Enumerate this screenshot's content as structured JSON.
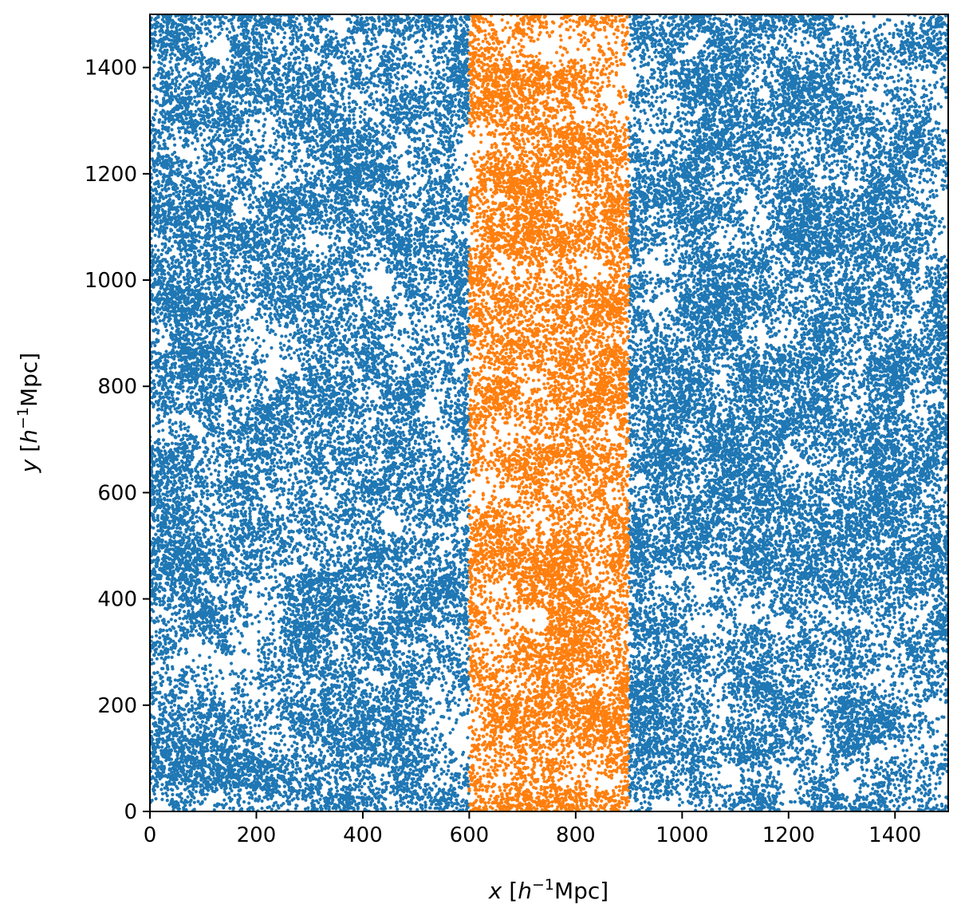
{
  "chart_data": {
    "type": "scatter",
    "title": "",
    "xlabel": {
      "var": "x",
      "open": " [",
      "h": "h",
      "exp": "−1",
      "unit": "Mpc]"
    },
    "ylabel": {
      "var": "y",
      "open": " [",
      "h": "h",
      "exp": "−1",
      "unit": "Mpc]"
    },
    "xlim": [
      0,
      1500
    ],
    "ylim": [
      0,
      1500
    ],
    "xticks": [
      0,
      200,
      400,
      600,
      800,
      1000,
      1200,
      1400
    ],
    "yticks": [
      0,
      200,
      400,
      600,
      800,
      1000,
      1200,
      1400
    ],
    "grid": false,
    "series": [
      {
        "color": "#1f77b4",
        "x_range": [
          0,
          1500
        ],
        "exclude_x_range": [
          600,
          900
        ],
        "points": 52000
      },
      {
        "color": "#ff7f0e",
        "x_range": [
          600,
          900
        ],
        "points": 13000
      }
    ]
  }
}
